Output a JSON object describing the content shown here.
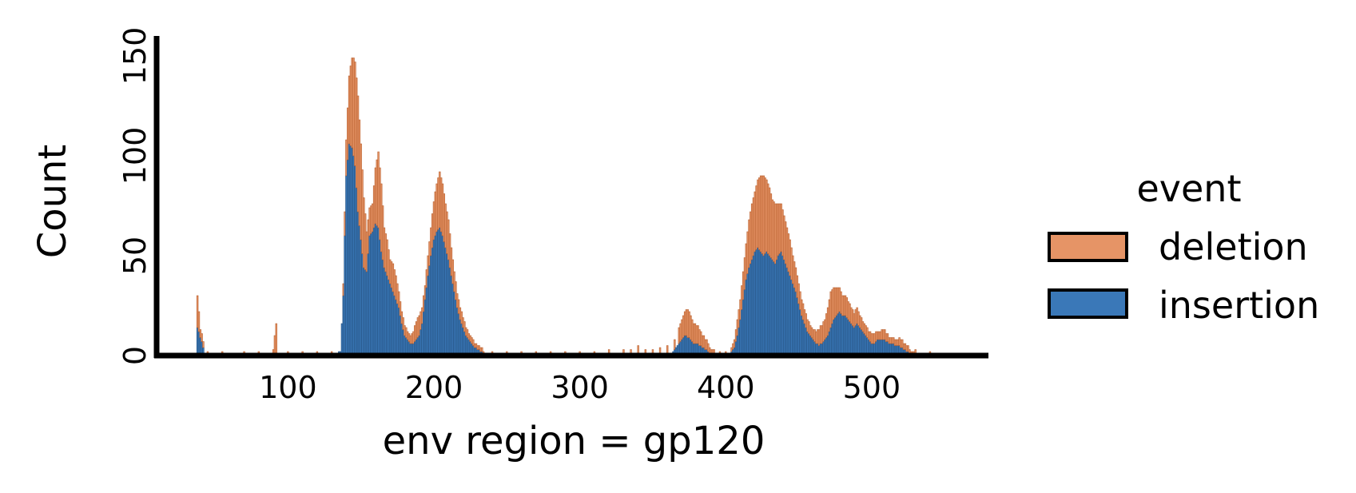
{
  "chart_data": {
    "type": "bar",
    "subtype": "stacked-histogram",
    "xlabel": "env region = gp120",
    "ylabel": "Count",
    "xlim": [
      10,
      580
    ],
    "ylim": [
      0,
      160
    ],
    "xticks": [
      100,
      200,
      300,
      400,
      500
    ],
    "yticks": [
      0,
      50,
      100,
      150
    ],
    "grid": false,
    "legend_title": "event",
    "legend_placement": "right",
    "stacking": "insertion at bottom, deletion stacked on top",
    "series": [
      {
        "name": "deletion",
        "color": "#E69466",
        "edge_color": "#B8602F",
        "points": [
          [
            38,
            16
          ],
          [
            40,
            4
          ],
          [
            42,
            3
          ],
          [
            45,
            1
          ],
          [
            55,
            1
          ],
          [
            70,
            1
          ],
          [
            80,
            1
          ],
          [
            90,
            2
          ],
          [
            92,
            15
          ],
          [
            100,
            1
          ],
          [
            110,
            1
          ],
          [
            120,
            1
          ],
          [
            130,
            1
          ],
          [
            138,
            6
          ],
          [
            140,
            18
          ],
          [
            142,
            34
          ],
          [
            144,
            45
          ],
          [
            146,
            52
          ],
          [
            148,
            58
          ],
          [
            150,
            48
          ],
          [
            152,
            35
          ],
          [
            154,
            20
          ],
          [
            156,
            14
          ],
          [
            158,
            14
          ],
          [
            160,
            28
          ],
          [
            162,
            38
          ],
          [
            164,
            34
          ],
          [
            166,
            20
          ],
          [
            168,
            18
          ],
          [
            170,
            12
          ],
          [
            172,
            14
          ],
          [
            174,
            12
          ],
          [
            176,
            8
          ],
          [
            178,
            6
          ],
          [
            180,
            5
          ],
          [
            182,
            4
          ],
          [
            184,
            4
          ],
          [
            186,
            6
          ],
          [
            188,
            9
          ],
          [
            190,
            10
          ],
          [
            192,
            8
          ],
          [
            194,
            7
          ],
          [
            196,
            10
          ],
          [
            198,
            14
          ],
          [
            200,
            19
          ],
          [
            202,
            24
          ],
          [
            204,
            28
          ],
          [
            206,
            26
          ],
          [
            208,
            22
          ],
          [
            210,
            20
          ],
          [
            212,
            14
          ],
          [
            214,
            10
          ],
          [
            216,
            7
          ],
          [
            218,
            6
          ],
          [
            220,
            5
          ],
          [
            222,
            4
          ],
          [
            224,
            3
          ],
          [
            226,
            3
          ],
          [
            228,
            2
          ],
          [
            230,
            2
          ],
          [
            232,
            2
          ],
          [
            234,
            1
          ],
          [
            240,
            1
          ],
          [
            250,
            1
          ],
          [
            260,
            1
          ],
          [
            270,
            1
          ],
          [
            280,
            1
          ],
          [
            290,
            1
          ],
          [
            300,
            1
          ],
          [
            310,
            2
          ],
          [
            320,
            2
          ],
          [
            330,
            3
          ],
          [
            335,
            3
          ],
          [
            340,
            4
          ],
          [
            345,
            3
          ],
          [
            350,
            3
          ],
          [
            355,
            4
          ],
          [
            360,
            4
          ],
          [
            365,
            5
          ],
          [
            368,
            8
          ],
          [
            370,
            10
          ],
          [
            372,
            12
          ],
          [
            374,
            14
          ],
          [
            376,
            12
          ],
          [
            378,
            10
          ],
          [
            380,
            9
          ],
          [
            382,
            8
          ],
          [
            384,
            6
          ],
          [
            386,
            5
          ],
          [
            388,
            4
          ],
          [
            390,
            3
          ],
          [
            392,
            2
          ],
          [
            396,
            2
          ],
          [
            400,
            1
          ],
          [
            404,
            2
          ],
          [
            406,
            4
          ],
          [
            408,
            8
          ],
          [
            410,
            10
          ],
          [
            412,
            14
          ],
          [
            414,
            18
          ],
          [
            416,
            24
          ],
          [
            418,
            28
          ],
          [
            420,
            30
          ],
          [
            422,
            34
          ],
          [
            424,
            38
          ],
          [
            426,
            40
          ],
          [
            428,
            36
          ],
          [
            430,
            34
          ],
          [
            432,
            30
          ],
          [
            434,
            30
          ],
          [
            436,
            26
          ],
          [
            438,
            24
          ],
          [
            440,
            22
          ],
          [
            442,
            20
          ],
          [
            444,
            18
          ],
          [
            446,
            14
          ],
          [
            448,
            12
          ],
          [
            450,
            10
          ],
          [
            452,
            8
          ],
          [
            454,
            7
          ],
          [
            456,
            6
          ],
          [
            458,
            5
          ],
          [
            460,
            5
          ],
          [
            462,
            6
          ],
          [
            464,
            8
          ],
          [
            466,
            9
          ],
          [
            468,
            10
          ],
          [
            470,
            14
          ],
          [
            472,
            18
          ],
          [
            474,
            16
          ],
          [
            476,
            14
          ],
          [
            478,
            12
          ],
          [
            480,
            10
          ],
          [
            482,
            10
          ],
          [
            484,
            9
          ],
          [
            486,
            8
          ],
          [
            488,
            7
          ],
          [
            490,
            8
          ],
          [
            492,
            6
          ],
          [
            494,
            5
          ],
          [
            496,
            5
          ],
          [
            498,
            4
          ],
          [
            500,
            5
          ],
          [
            502,
            5
          ],
          [
            504,
            4
          ],
          [
            506,
            4
          ],
          [
            508,
            5
          ],
          [
            510,
            4
          ],
          [
            512,
            3
          ],
          [
            514,
            3
          ],
          [
            516,
            3
          ],
          [
            518,
            3
          ],
          [
            520,
            4
          ],
          [
            522,
            3
          ],
          [
            524,
            3
          ],
          [
            526,
            2
          ],
          [
            528,
            2
          ],
          [
            530,
            2
          ],
          [
            534,
            1
          ],
          [
            540,
            1
          ],
          [
            546,
            1
          ]
        ]
      },
      {
        "name": "insertion",
        "color": "#3A78B8",
        "edge_color": "#24507E",
        "points": [
          [
            38,
            14
          ],
          [
            40,
            9
          ],
          [
            42,
            4
          ],
          [
            45,
            1
          ],
          [
            55,
            1
          ],
          [
            70,
            1
          ],
          [
            80,
            1
          ],
          [
            90,
            1
          ],
          [
            92,
            1
          ],
          [
            100,
            1
          ],
          [
            110,
            1
          ],
          [
            120,
            1
          ],
          [
            130,
            1
          ],
          [
            134,
            1
          ],
          [
            136,
            2
          ],
          [
            138,
            30
          ],
          [
            140,
            90
          ],
          [
            142,
            106
          ],
          [
            144,
            104
          ],
          [
            146,
            95
          ],
          [
            148,
            72
          ],
          [
            150,
            58
          ],
          [
            152,
            44
          ],
          [
            154,
            42
          ],
          [
            156,
            60
          ],
          [
            158,
            62
          ],
          [
            160,
            66
          ],
          [
            162,
            64
          ],
          [
            164,
            52
          ],
          [
            166,
            44
          ],
          [
            168,
            40
          ],
          [
            170,
            36
          ],
          [
            172,
            32
          ],
          [
            174,
            28
          ],
          [
            176,
            24
          ],
          [
            178,
            16
          ],
          [
            180,
            10
          ],
          [
            182,
            8
          ],
          [
            184,
            6
          ],
          [
            186,
            6
          ],
          [
            188,
            8
          ],
          [
            190,
            10
          ],
          [
            192,
            16
          ],
          [
            194,
            28
          ],
          [
            196,
            40
          ],
          [
            198,
            50
          ],
          [
            200,
            58
          ],
          [
            202,
            62
          ],
          [
            204,
            64
          ],
          [
            206,
            60
          ],
          [
            208,
            54
          ],
          [
            210,
            48
          ],
          [
            212,
            40
          ],
          [
            214,
            32
          ],
          [
            216,
            24
          ],
          [
            218,
            18
          ],
          [
            220,
            14
          ],
          [
            222,
            10
          ],
          [
            224,
            8
          ],
          [
            226,
            6
          ],
          [
            228,
            4
          ],
          [
            230,
            3
          ],
          [
            232,
            2
          ],
          [
            234,
            1
          ],
          [
            240,
            1
          ],
          [
            250,
            1
          ],
          [
            260,
            1
          ],
          [
            270,
            1
          ],
          [
            280,
            1
          ],
          [
            290,
            1
          ],
          [
            300,
            1
          ],
          [
            320,
            1
          ],
          [
            340,
            1
          ],
          [
            360,
            1
          ],
          [
            364,
            2
          ],
          [
            366,
            4
          ],
          [
            368,
            6
          ],
          [
            370,
            8
          ],
          [
            372,
            10
          ],
          [
            374,
            9
          ],
          [
            376,
            8
          ],
          [
            378,
            6
          ],
          [
            380,
            6
          ],
          [
            382,
            5
          ],
          [
            384,
            4
          ],
          [
            386,
            3
          ],
          [
            388,
            2
          ],
          [
            392,
            1
          ],
          [
            400,
            1
          ],
          [
            404,
            2
          ],
          [
            406,
            4
          ],
          [
            408,
            10
          ],
          [
            410,
            18
          ],
          [
            412,
            28
          ],
          [
            414,
            38
          ],
          [
            416,
            44
          ],
          [
            418,
            48
          ],
          [
            420,
            52
          ],
          [
            422,
            54
          ],
          [
            424,
            52
          ],
          [
            426,
            50
          ],
          [
            428,
            52
          ],
          [
            430,
            50
          ],
          [
            432,
            48
          ],
          [
            434,
            46
          ],
          [
            436,
            50
          ],
          [
            438,
            52
          ],
          [
            440,
            48
          ],
          [
            442,
            44
          ],
          [
            444,
            40
          ],
          [
            446,
            36
          ],
          [
            448,
            32
          ],
          [
            450,
            26
          ],
          [
            452,
            20
          ],
          [
            454,
            16
          ],
          [
            456,
            12
          ],
          [
            458,
            10
          ],
          [
            460,
            8
          ],
          [
            462,
            6
          ],
          [
            464,
            5
          ],
          [
            466,
            6
          ],
          [
            468,
            8
          ],
          [
            470,
            10
          ],
          [
            472,
            14
          ],
          [
            474,
            18
          ],
          [
            476,
            20
          ],
          [
            478,
            22
          ],
          [
            480,
            20
          ],
          [
            482,
            20
          ],
          [
            484,
            18
          ],
          [
            486,
            16
          ],
          [
            488,
            14
          ],
          [
            490,
            16
          ],
          [
            492,
            14
          ],
          [
            494,
            12
          ],
          [
            496,
            10
          ],
          [
            498,
            8
          ],
          [
            500,
            6
          ],
          [
            502,
            6
          ],
          [
            504,
            8
          ],
          [
            506,
            8
          ],
          [
            508,
            8
          ],
          [
            510,
            7
          ],
          [
            512,
            6
          ],
          [
            514,
            6
          ],
          [
            516,
            5
          ],
          [
            518,
            5
          ],
          [
            520,
            4
          ],
          [
            522,
            3
          ],
          [
            524,
            2
          ],
          [
            526,
            1
          ],
          [
            530,
            1
          ],
          [
            540,
            1
          ]
        ]
      }
    ]
  }
}
